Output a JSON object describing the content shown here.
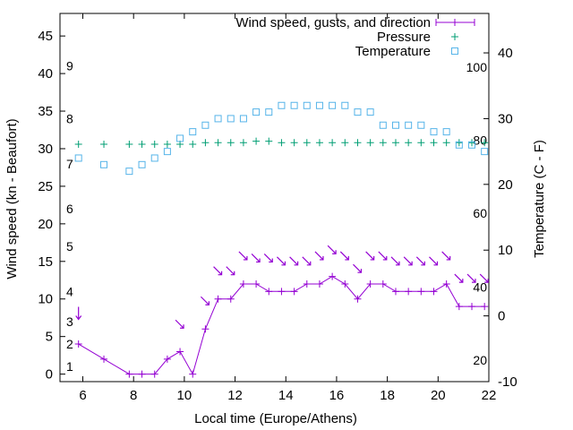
{
  "chart_data": {
    "type": "line",
    "title": "",
    "xlabel": "Local time (Europe/Athens)",
    "ylabel": "Wind speed (kn - Beaufort)",
    "y2label": "Temperature (C - F)",
    "xlim": [
      5.1,
      22
    ],
    "ylim": [
      -1,
      48
    ],
    "y2lim": [
      -10,
      46
    ],
    "x_ticks": [
      "6",
      "8",
      "10",
      "12",
      "14",
      "16",
      "18",
      "20",
      "22"
    ],
    "y_ticks": [
      "0",
      "5",
      "10",
      "15",
      "20",
      "25",
      "30",
      "35",
      "40",
      "45"
    ],
    "y2_ticks": [
      "-10",
      "0",
      "10",
      "20",
      "30",
      "40"
    ],
    "beaufort_labels": [
      {
        "label": "1",
        "kn": 1
      },
      {
        "label": "2",
        "kn": 4
      },
      {
        "label": "3",
        "kn": 7
      },
      {
        "label": "4",
        "kn": 11
      },
      {
        "label": "5",
        "kn": 17
      },
      {
        "label": "6",
        "kn": 22
      },
      {
        "label": "7",
        "kn": 28
      },
      {
        "label": "8",
        "kn": 34
      },
      {
        "label": "9",
        "kn": 41
      }
    ],
    "fahrenheit_labels": [
      {
        "label": "20",
        "celsius": -6.7
      },
      {
        "label": "40",
        "celsius": 4.4
      },
      {
        "label": "60",
        "celsius": 15.6
      },
      {
        "label": "80",
        "celsius": 26.7
      },
      {
        "label": "100",
        "celsius": 37.8
      }
    ],
    "legend": {
      "position": "top-right",
      "wind": "Wind speed, gusts, and direction",
      "pressure": "Pressure",
      "temperature": "Temperature"
    },
    "colors": {
      "wind": "#9400d3",
      "pressure": "#009e73",
      "temperature": "#56b4e9"
    },
    "series": [
      {
        "name": "Wind speed",
        "axis": "y",
        "x": [
          5.83,
          6.83,
          7.83,
          8.33,
          8.83,
          9.33,
          9.83,
          10.33,
          10.83,
          11.33,
          11.83,
          12.33,
          12.83,
          13.33,
          13.83,
          14.33,
          14.83,
          15.33,
          15.83,
          16.33,
          16.83,
          17.33,
          17.83,
          18.33,
          18.83,
          19.33,
          19.83,
          20.33,
          20.83,
          21.33,
          21.83
        ],
        "y": [
          4,
          2,
          0,
          0,
          0,
          2,
          3,
          0,
          6,
          10,
          10,
          12,
          12,
          11,
          11,
          11,
          12,
          12,
          13,
          12,
          10,
          12,
          12,
          11,
          11,
          11,
          11,
          12,
          9,
          9,
          9
        ]
      },
      {
        "name": "Gust direction arrows",
        "x": [
          5.83,
          9.83,
          10.83,
          11.33,
          11.83,
          12.33,
          12.83,
          13.33,
          13.83,
          14.33,
          14.83,
          15.33,
          15.83,
          16.33,
          16.83,
          17.33,
          17.83,
          18.33,
          18.83,
          19.33,
          19.83,
          20.33,
          20.83,
          21.33,
          21.83
        ],
        "y": [
          8,
          6.6,
          9.7,
          13.7,
          13.7,
          15.7,
          15.4,
          15.4,
          15.0,
          15.0,
          15.0,
          15.7,
          16.5,
          15.7,
          14.0,
          15.7,
          15.7,
          15.0,
          15.0,
          15.0,
          15.0,
          15.7,
          12.7,
          12.7,
          12.7
        ],
        "direction": [
          "N",
          "NW",
          "NW",
          "NW",
          "NW",
          "NW",
          "NW",
          "NW",
          "NW",
          "NW",
          "NW",
          "NW",
          "NW",
          "NW",
          "NW",
          "NW",
          "NW",
          "NW",
          "NW",
          "NW",
          "NW",
          "NW",
          "NW",
          "NW",
          "NW"
        ]
      },
      {
        "name": "Pressure",
        "axis": "y",
        "x": [
          5.83,
          6.83,
          7.83,
          8.33,
          8.83,
          9.33,
          9.83,
          10.33,
          10.83,
          11.33,
          11.83,
          12.33,
          12.83,
          13.33,
          13.83,
          14.33,
          14.83,
          15.33,
          15.83,
          16.33,
          16.83,
          17.33,
          17.83,
          18.33,
          18.83,
          19.33,
          19.83,
          20.33,
          20.83,
          21.33,
          21.83
        ],
        "y": [
          30.6,
          30.6,
          30.6,
          30.6,
          30.6,
          30.6,
          30.6,
          30.6,
          30.8,
          30.8,
          30.8,
          30.8,
          31.0,
          31.0,
          30.8,
          30.8,
          30.8,
          30.8,
          30.8,
          30.8,
          30.8,
          30.8,
          30.8,
          30.8,
          30.8,
          30.8,
          30.8,
          30.8,
          30.8,
          30.8,
          30.8
        ]
      },
      {
        "name": "Temperature",
        "axis": "y2",
        "x": [
          5.83,
          6.83,
          7.83,
          8.33,
          8.83,
          9.33,
          9.83,
          10.33,
          10.83,
          11.33,
          11.83,
          12.33,
          12.83,
          13.33,
          13.83,
          14.33,
          14.83,
          15.33,
          15.83,
          16.33,
          16.83,
          17.33,
          17.83,
          18.33,
          18.83,
          19.33,
          19.83,
          20.33,
          20.83,
          21.33,
          21.83
        ],
        "y": [
          24,
          23,
          22,
          23,
          24,
          25,
          27,
          28,
          29,
          30,
          30,
          30,
          31,
          31,
          32,
          32,
          32,
          32,
          32,
          32,
          31,
          31,
          29,
          29,
          29,
          29,
          28,
          28,
          26,
          26,
          25
        ]
      }
    ]
  }
}
